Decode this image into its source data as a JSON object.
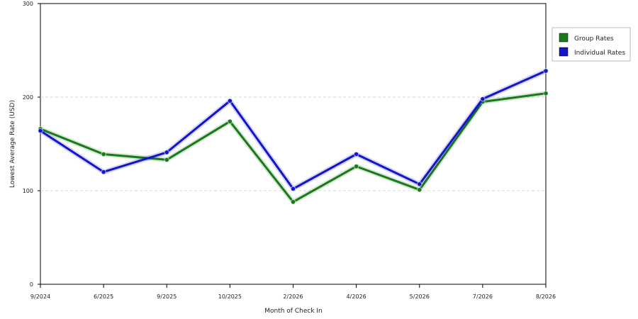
{
  "chart_data": {
    "type": "line",
    "xlabel": "Month of Check In",
    "ylabel": "Lowest Average Rate (USD)",
    "categories": [
      "9/2024",
      "6/2025",
      "9/2025",
      "10/2025",
      "2/2026",
      "4/2026",
      "5/2026",
      "7/2026",
      "8/2026"
    ],
    "ylim": [
      0,
      300
    ],
    "yticks": [
      "0",
      "100",
      "200",
      "300"
    ],
    "grid": "horizontal dashed at 100, 200",
    "legend_position": "right",
    "series": [
      {
        "name": "Group Rates",
        "color": "#1a7a1a",
        "values": [
          166,
          139,
          133,
          174,
          88,
          126,
          101,
          195,
          204
        ]
      },
      {
        "name": "Individual Rates",
        "color": "#1414c8",
        "values": [
          164,
          120,
          141,
          196,
          102,
          139,
          107,
          198,
          228
        ]
      }
    ]
  }
}
